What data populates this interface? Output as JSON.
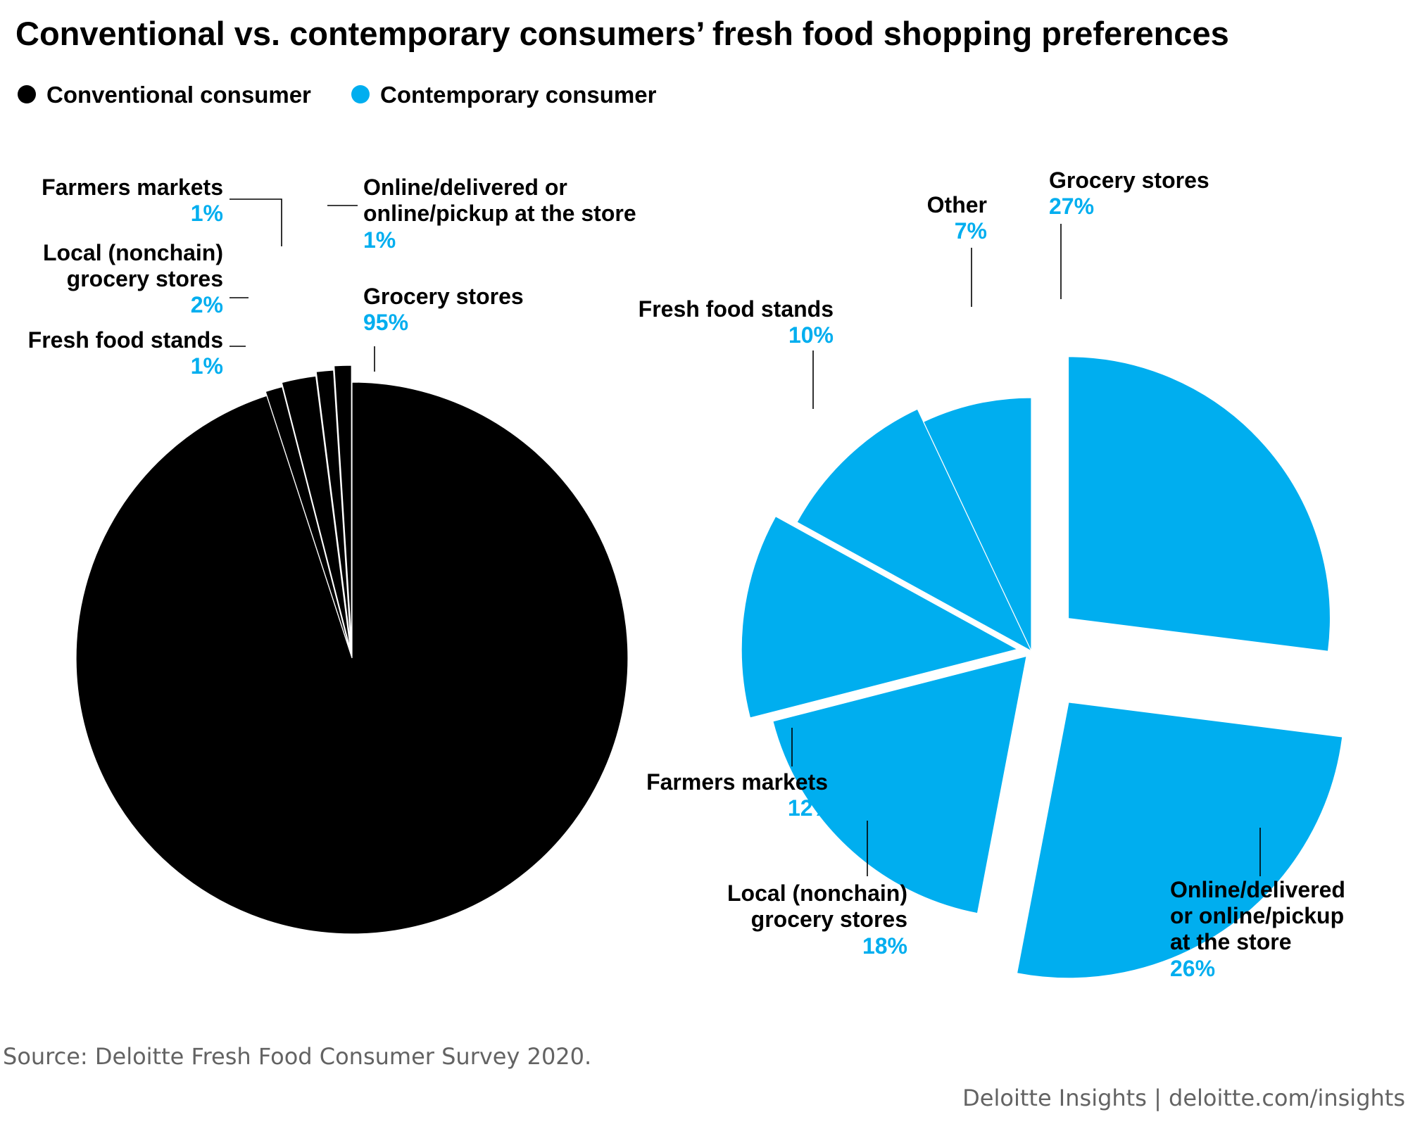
{
  "title": "Conventional vs. contemporary consumers’ fresh food shopping preferences",
  "legend": [
    {
      "label": "Conventional consumer",
      "color": "#000000"
    },
    {
      "label": "Contemporary consumer",
      "color": "#00aeef"
    }
  ],
  "colors": {
    "conventional": "#000000",
    "contemporary": "#00aeef",
    "percent_text": "#00aeef"
  },
  "chart_data": [
    {
      "type": "pie",
      "name": "Conventional consumer",
      "slices": [
        {
          "key": "grocery",
          "label": "Grocery stores",
          "value": 95,
          "display": "95%"
        },
        {
          "key": "fresh_food_stands",
          "label": "Fresh food stands",
          "value": 1,
          "display": "1%"
        },
        {
          "key": "local_grocery",
          "label": "Local (nonchain) grocery stores",
          "label_lines": [
            "Local (nonchain)",
            "grocery stores"
          ],
          "value": 2,
          "display": "2%"
        },
        {
          "key": "farmers_markets",
          "label": "Farmers markets",
          "value": 1,
          "display": "1%"
        },
        {
          "key": "online",
          "label": "Online/delivered or online/pickup at the store",
          "label_lines": [
            "Online/delivered or",
            "online/pickup at the store"
          ],
          "value": 1,
          "display": "1%"
        }
      ]
    },
    {
      "type": "pie",
      "name": "Contemporary consumer",
      "slices": [
        {
          "key": "grocery",
          "label": "Grocery stores",
          "value": 27,
          "display": "27%"
        },
        {
          "key": "online",
          "label": "Online/delivered or online/pickup at the store",
          "label_lines": [
            "Online/delivered",
            "or online/pickup",
            "at the store"
          ],
          "value": 26,
          "display": "26%"
        },
        {
          "key": "local_grocery",
          "label": "Local (nonchain) grocery stores",
          "label_lines": [
            "Local (nonchain)",
            "grocery stores"
          ],
          "value": 18,
          "display": "18%"
        },
        {
          "key": "farmers_markets",
          "label": "Farmers markets",
          "value": 12,
          "display": "12%"
        },
        {
          "key": "fresh_food_stands",
          "label": "Fresh food stands",
          "value": 10,
          "display": "10%"
        },
        {
          "key": "other",
          "label": "Other",
          "value": 7,
          "display": "7%"
        }
      ]
    }
  ],
  "source": "Source: Deloitte Fresh Food Consumer Survey 2020.",
  "branding": "Deloitte Insights | deloitte.com/insights"
}
